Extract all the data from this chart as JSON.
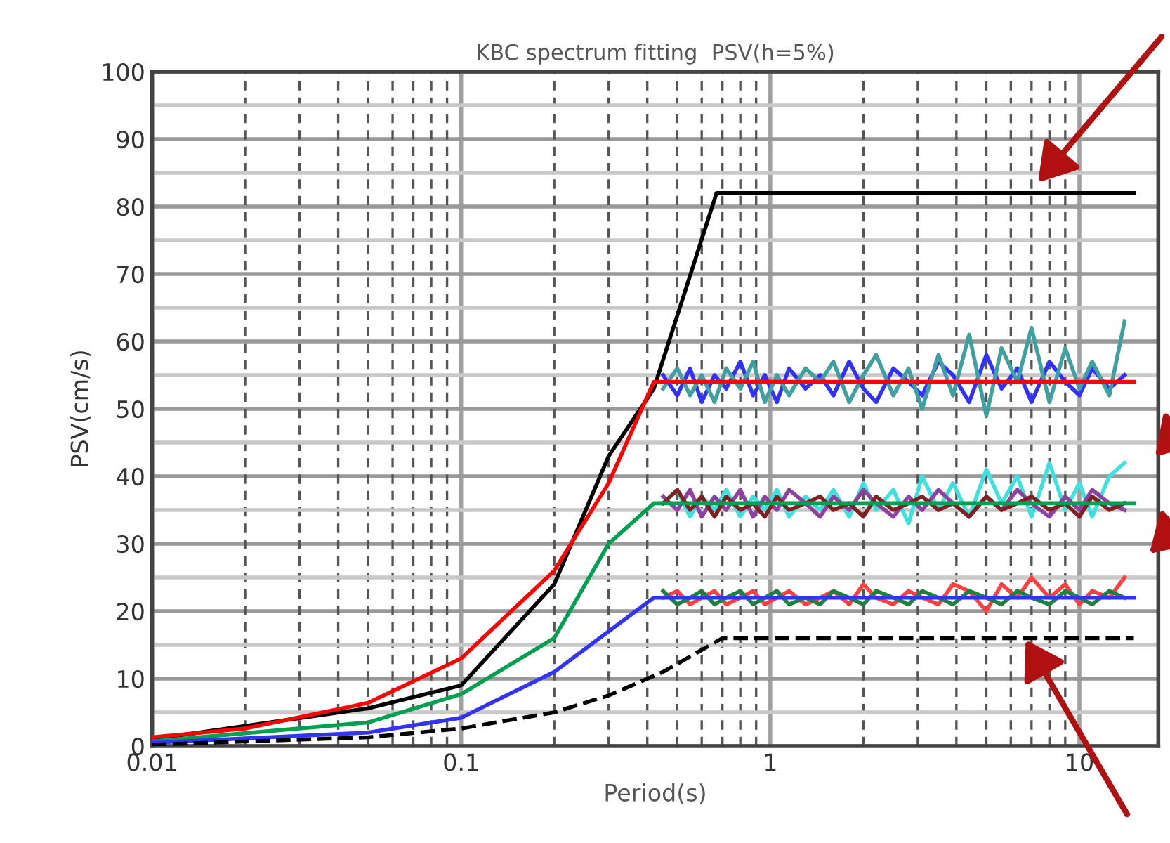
{
  "chart_data": {
    "type": "line",
    "title": "KBC spectrum fitting  PSV(h=5%)",
    "xlabel": "Period(s)",
    "ylabel": "PSV(cm/s)",
    "log": "x",
    "xlim": [
      0.01,
      18
    ],
    "xticks": [
      0.01,
      0.1,
      1,
      {
        "value": 10,
        "label": "10"
      }
    ],
    "ylim": [
      0,
      100
    ],
    "yticks": [
      0,
      10,
      20,
      30,
      40,
      50,
      60,
      70,
      80,
      90,
      100
    ],
    "grid": true,
    "marker": "none",
    "line_style": "solid",
    "x": [
      0.45,
      0.5,
      0.55,
      0.6,
      0.66,
      0.72,
      0.8,
      0.88,
      0.96,
      1.05,
      1.15,
      1.3,
      1.45,
      1.6,
      1.8,
      2,
      2.2,
      2.5,
      2.8,
      3.1,
      3.5,
      3.9,
      4.4,
      5,
      5.6,
      6.3,
      7,
      8,
      9,
      10,
      11,
      12.5,
      14
    ],
    "series": [
      {
        "color": "#3030ff",
        "values": [
          55,
          52,
          56,
          51,
          55,
          53,
          57,
          52,
          55,
          51,
          56,
          53,
          55,
          52,
          57,
          53,
          51,
          56,
          54,
          52,
          57,
          55,
          51,
          58,
          53,
          56,
          51,
          57,
          54,
          52,
          56,
          53,
          55
        ]
      },
      {
        "color": "#40a0a0",
        "values": [
          53,
          56,
          52,
          55,
          51,
          56,
          53,
          57,
          51,
          55,
          52,
          56,
          54,
          57,
          51,
          55,
          58,
          52,
          56,
          50,
          58,
          52,
          61,
          49,
          59,
          54,
          62,
          51,
          59,
          53,
          57,
          52,
          63
        ]
      },
      {
        "color": "#40e0e0",
        "values": [
          36,
          38,
          34,
          37,
          35,
          38,
          34,
          37,
          35,
          38,
          34,
          37,
          35,
          38,
          34,
          39,
          35,
          38,
          33,
          40,
          35,
          39,
          34,
          41,
          36,
          40,
          34,
          42,
          35,
          39,
          34,
          40,
          42
        ]
      },
      {
        "color": "#9040a0",
        "values": [
          37,
          35,
          38,
          34,
          37,
          35,
          38,
          34,
          37,
          35,
          38,
          36,
          34,
          37,
          35,
          38,
          36,
          34,
          37,
          35,
          38,
          36,
          34,
          37,
          35,
          38,
          36,
          34,
          37,
          35,
          38,
          36,
          35
        ]
      },
      {
        "color": "#802020",
        "values": [
          36,
          38,
          35,
          37,
          34,
          37,
          35,
          36,
          34,
          37,
          35,
          36,
          37,
          35,
          36,
          34,
          37,
          35,
          36,
          37,
          35,
          36,
          34,
          37,
          35,
          36,
          37,
          35,
          36,
          34,
          37,
          35,
          36
        ]
      },
      {
        "color": "#ff4040",
        "values": [
          22,
          23,
          21,
          22,
          23,
          21,
          22,
          23,
          21,
          22,
          23,
          21,
          22,
          23,
          21,
          24,
          22,
          21,
          23,
          22,
          21,
          24,
          23,
          20,
          24,
          22,
          25,
          22,
          24,
          21,
          23,
          22,
          25
        ]
      },
      {
        "color": "#208040",
        "values": [
          23,
          21,
          22,
          23,
          21,
          22,
          23,
          21,
          22,
          23,
          21,
          22,
          21,
          23,
          22,
          21,
          23,
          22,
          21,
          23,
          22,
          21,
          23,
          22,
          21,
          23,
          22,
          21,
          23,
          22,
          21,
          23,
          22
        ]
      },
      {
        "color": "#000000",
        "x": [
          0.01,
          0.05,
          0.1,
          0.2,
          0.3,
          0.42,
          0.67,
          15
        ],
        "values": [
          1,
          5.6,
          9,
          24,
          43,
          53,
          82,
          82
        ]
      },
      {
        "color": "#ff0000",
        "x": [
          0.01,
          0.02,
          0.05,
          0.1,
          0.2,
          0.3,
          0.42,
          15
        ],
        "values": [
          1.3,
          2.6,
          6.4,
          13,
          26,
          39,
          54,
          54
        ]
      },
      {
        "color": "#00a050",
        "x": [
          0.01,
          0.05,
          0.1,
          0.2,
          0.3,
          0.42,
          15
        ],
        "values": [
          0.7,
          3.5,
          7.7,
          16,
          30,
          36,
          36
        ]
      },
      {
        "color": "#3333ff",
        "x": [
          0.01,
          0.05,
          0.1,
          0.2,
          0.3,
          0.42,
          15
        ],
        "values": [
          0.5,
          2,
          4.2,
          11,
          17,
          22,
          22
        ]
      },
      {
        "color": "#000000",
        "line_style": "dashed",
        "x": [
          0.01,
          0.05,
          0.1,
          0.2,
          0.3,
          0.45,
          0.7,
          15
        ],
        "values": [
          0.2,
          1.3,
          2.6,
          5,
          7.5,
          11,
          16,
          16
        ]
      }
    ]
  }
}
